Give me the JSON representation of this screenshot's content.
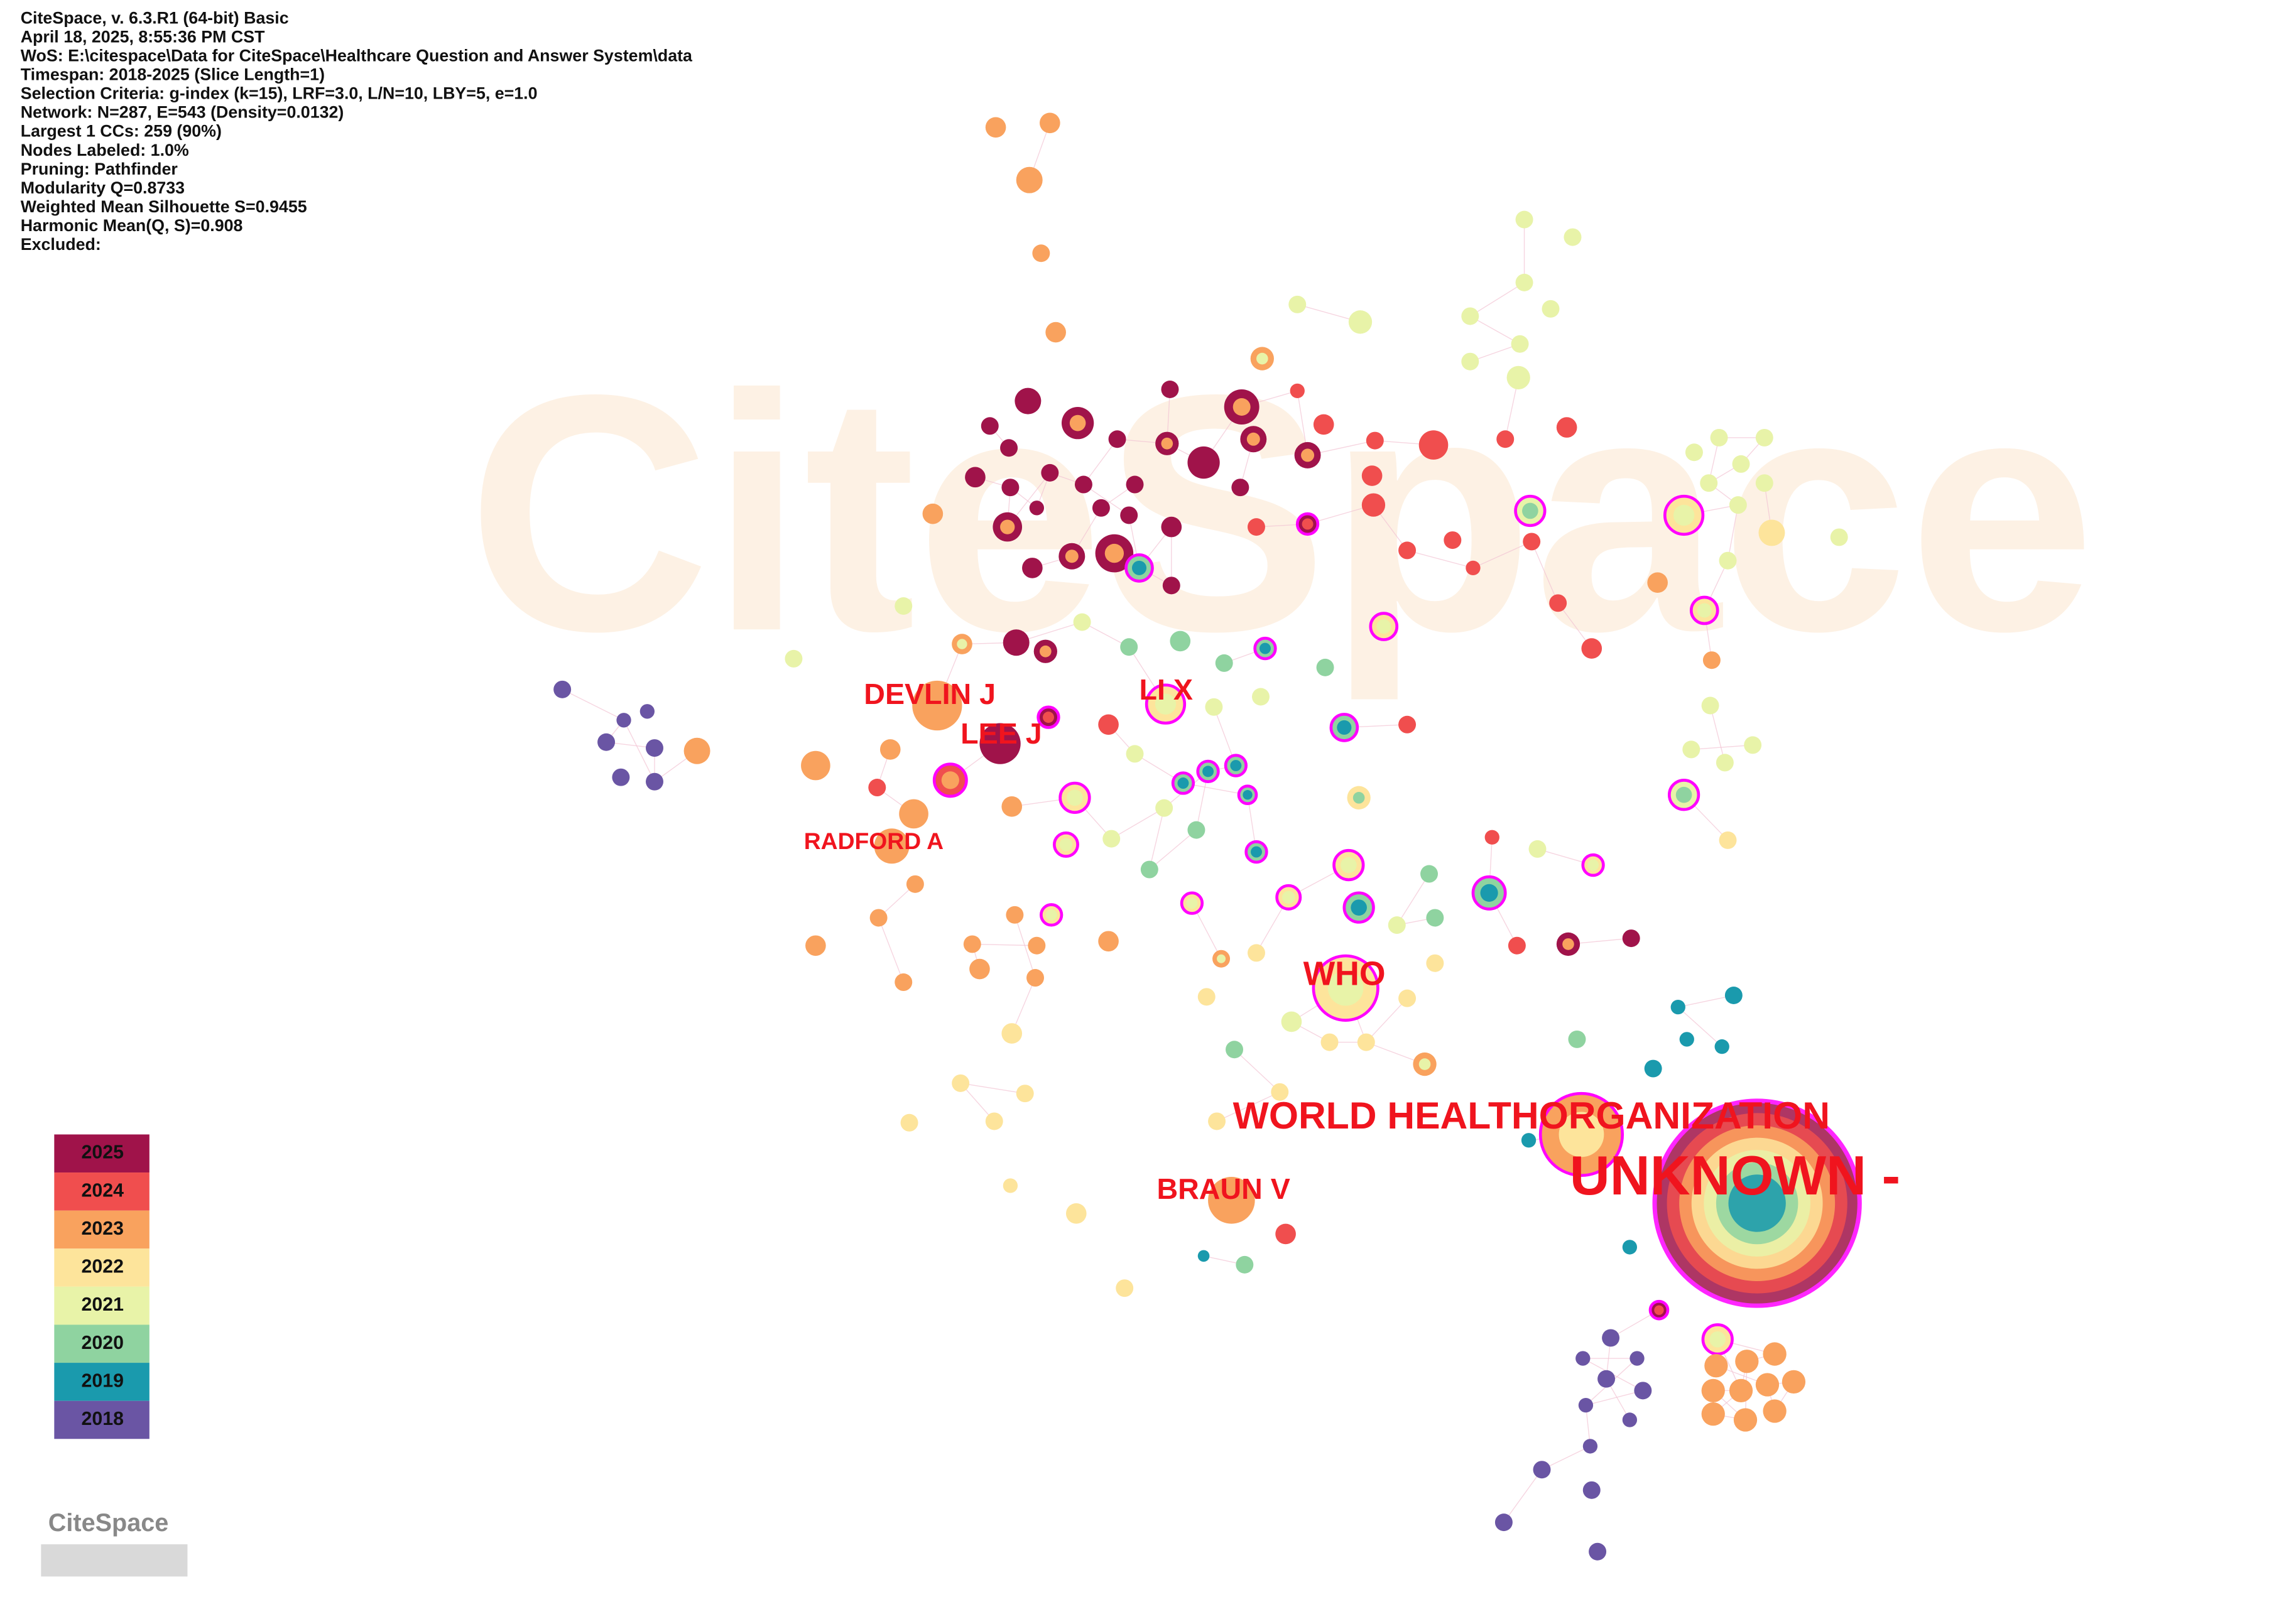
{
  "header": {
    "lines": [
      "CiteSpace, v. 6.3.R1 (64-bit) Basic",
      "April 18, 2025, 8:55:36 PM CST",
      "WoS: E:\\citespace\\Data for CiteSpace\\Healthcare Question and Answer System\\data",
      "Timespan: 2018-2025 (Slice Length=1)",
      "Selection Criteria: g-index (k=15), LRF=3.0, L/N=10, LBY=5, e=1.0",
      "Network: N=287, E=543 (Density=0.0132)",
      "Largest 1 CCs: 259 (90%)",
      "Nodes Labeled: 1.0%",
      "Pruning: Pathfinder",
      "Modularity Q=0.8733",
      "Weighted Mean Silhouette S=0.9455",
      "Harmonic Mean(Q, S)=0.908",
      "Excluded:"
    ]
  },
  "watermark": "CiteSpace",
  "labels": [
    "DEVLIN J",
    "LEE J",
    "LI X",
    "RADFORD A",
    "WHO",
    "WORLD HEALTHORGANIZATION",
    "UNKNOWN -",
    "BRAUN V"
  ],
  "legend": {
    "years": [
      "2025",
      "2024",
      "2023",
      "2022",
      "2021",
      "2020",
      "2019",
      "2018"
    ]
  },
  "logo": "CiteSpace"
}
